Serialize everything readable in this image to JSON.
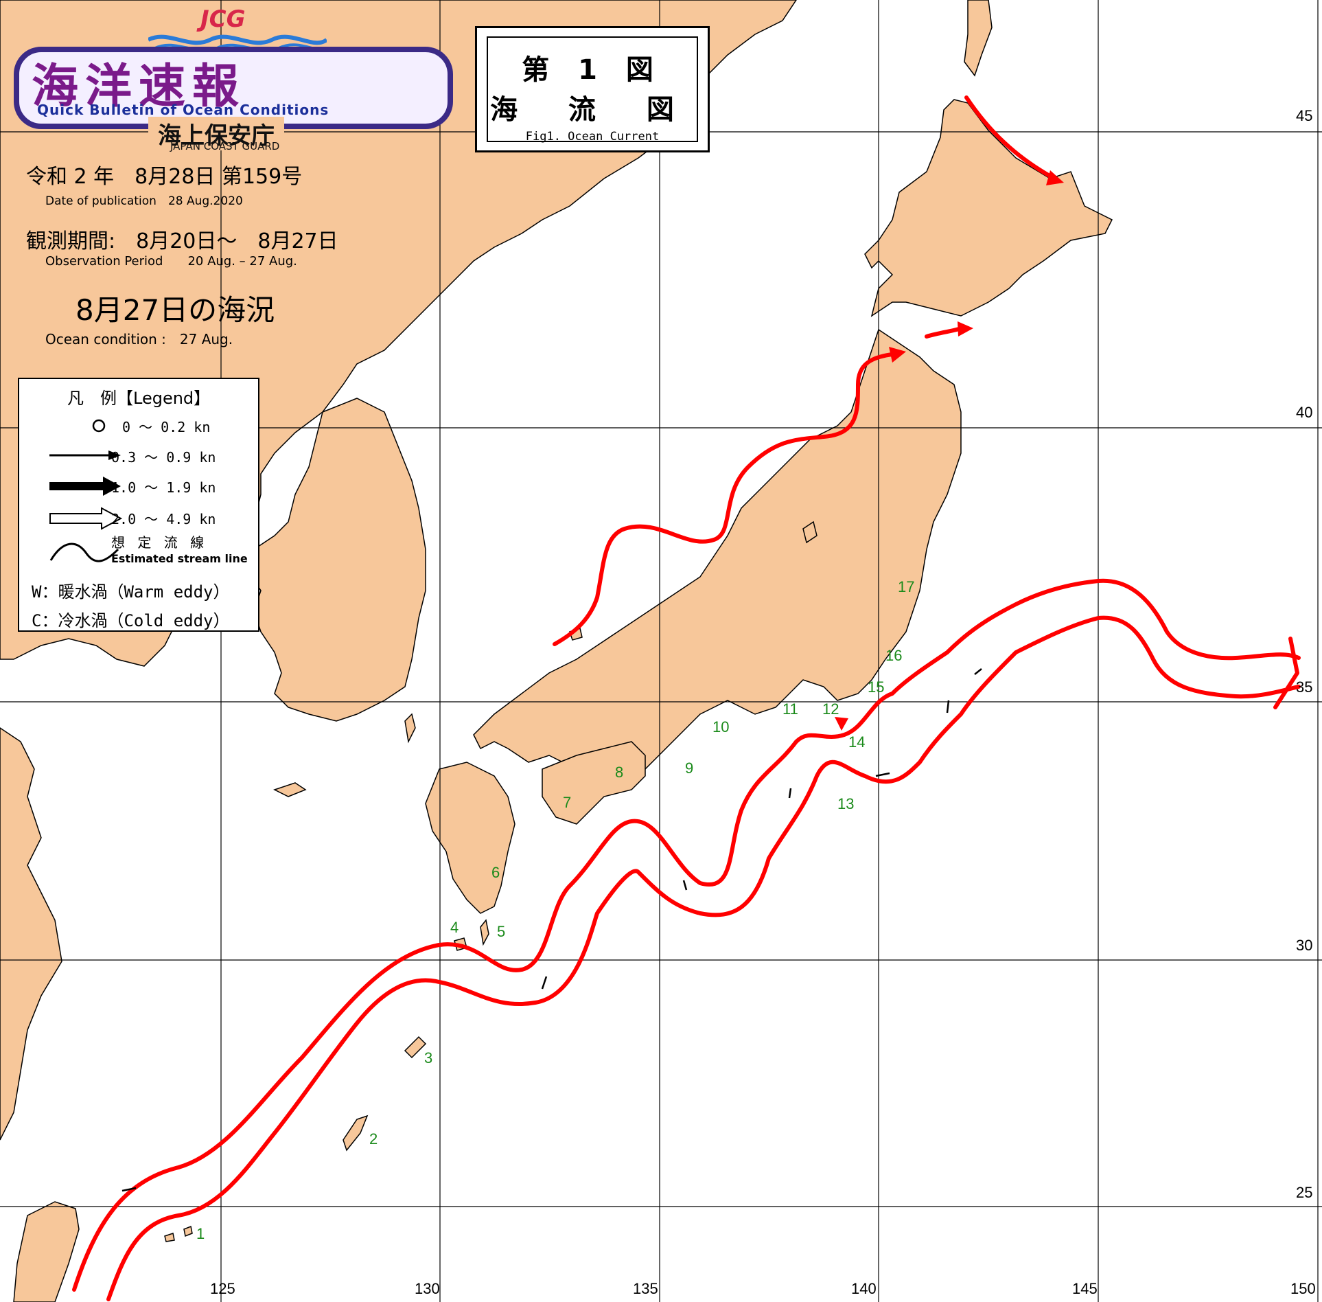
{
  "header": {
    "logo_top": "JCG",
    "logo_title": "海洋速報",
    "logo_subtitle": "Quick Bulletin of Ocean Conditions",
    "org_name": "海上保安庁",
    "org_name_en": "JAPAN COAST GUARD"
  },
  "figure": {
    "number": "第 1 図",
    "title": "海 流 図",
    "title_en": "Fig1. Ocean Current"
  },
  "info": {
    "publication": "令和 2 年　8月28日 第159号",
    "publication_en": "Date of publication　28 Aug.2020",
    "observation": "観測期間:　8月20日～　8月27日",
    "observation_en": "Observation Period　　20 Aug. – 27 Aug.",
    "condition": "8月27日の海況",
    "condition_en": "Ocean condition :　27 Aug."
  },
  "legend": {
    "title": "凡　例【Legend】",
    "speed_1": "0 ～ 0.2 kn",
    "speed_2": "0.3 ～ 0.9 kn",
    "speed_3": "1.0 ～ 1.9 kn",
    "speed_4": "2.0 ～ 4.9 kn",
    "stream_jp": "想 定 流 線",
    "stream_en": "Estimated stream line",
    "warm": "W：暖水渦（Warm eddy）",
    "cold": "C：冷水渦（Cold eddy）"
  },
  "axes": {
    "lon_labels": [
      "125",
      "130",
      "135",
      "140",
      "145",
      "150"
    ],
    "lat_labels": [
      "45",
      "40",
      "35",
      "30",
      "25"
    ]
  },
  "region_numbers": [
    "1",
    "2",
    "3",
    "4",
    "5",
    "6",
    "7",
    "8",
    "9",
    "10",
    "11",
    "12",
    "13",
    "14",
    "15",
    "16",
    "17"
  ],
  "colors": {
    "land": "#f7c79a",
    "sea": "#ffffff",
    "current": "#ff0000",
    "grid": "#000000",
    "logo_frame": "#3b2a86",
    "logo_text": "#7a1a8a",
    "region_number": "#1a8a1a"
  }
}
